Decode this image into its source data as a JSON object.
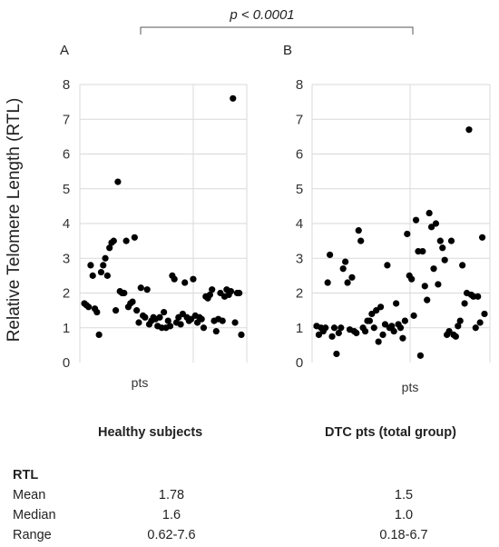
{
  "comparison": {
    "label": "p < 0.0001"
  },
  "ylabel": "Relative Telomere Length (RTL)",
  "chart_data": [
    {
      "type": "scatter",
      "panel": "A",
      "xlabel": "pts",
      "ylim": [
        0,
        8
      ],
      "yticks": [
        0,
        1,
        2,
        3,
        4,
        5,
        6,
        7,
        8
      ],
      "points": [
        [
          1,
          1.7
        ],
        [
          2,
          1.65
        ],
        [
          3,
          1.6
        ],
        [
          4,
          2.8
        ],
        [
          5,
          2.5
        ],
        [
          6,
          1.55
        ],
        [
          7,
          1.45
        ],
        [
          8,
          0.8
        ],
        [
          9,
          2.6
        ],
        [
          10,
          2.8
        ],
        [
          11,
          3.0
        ],
        [
          12,
          2.5
        ],
        [
          13,
          3.3
        ],
        [
          14,
          3.45
        ],
        [
          15,
          3.5
        ],
        [
          16,
          1.5
        ],
        [
          17,
          5.2
        ],
        [
          18,
          2.05
        ],
        [
          19,
          2.0
        ],
        [
          20,
          2.0
        ],
        [
          21,
          3.5
        ],
        [
          22,
          1.6
        ],
        [
          23,
          1.7
        ],
        [
          24,
          1.75
        ],
        [
          25,
          3.6
        ],
        [
          26,
          1.5
        ],
        [
          27,
          1.15
        ],
        [
          28,
          2.15
        ],
        [
          29,
          1.35
        ],
        [
          30,
          1.3
        ],
        [
          31,
          2.1
        ],
        [
          32,
          1.1
        ],
        [
          33,
          1.2
        ],
        [
          34,
          1.3
        ],
        [
          35,
          1.25
        ],
        [
          36,
          1.05
        ],
        [
          37,
          1.3
        ],
        [
          38,
          1.0
        ],
        [
          39,
          1.45
        ],
        [
          40,
          1.0
        ],
        [
          41,
          1.2
        ],
        [
          42,
          1.05
        ],
        [
          43,
          2.5
        ],
        [
          44,
          2.4
        ],
        [
          45,
          1.15
        ],
        [
          46,
          1.3
        ],
        [
          47,
          1.1
        ],
        [
          48,
          1.4
        ],
        [
          49,
          2.3
        ],
        [
          50,
          1.3
        ],
        [
          51,
          1.2
        ],
        [
          52,
          1.25
        ],
        [
          53,
          2.4
        ],
        [
          54,
          1.35
        ],
        [
          55,
          1.15
        ],
        [
          56,
          1.3
        ],
        [
          57,
          1.25
        ],
        [
          58,
          1.0
        ],
        [
          59,
          1.9
        ],
        [
          60,
          1.85
        ],
        [
          61,
          1.95
        ],
        [
          62,
          2.1
        ],
        [
          63,
          1.2
        ],
        [
          64,
          0.9
        ],
        [
          65,
          1.25
        ],
        [
          66,
          2.0
        ],
        [
          67,
          1.2
        ],
        [
          68,
          1.9
        ],
        [
          69,
          2.1
        ],
        [
          70,
          1.95
        ],
        [
          71,
          2.05
        ],
        [
          72,
          7.6
        ],
        [
          73,
          1.15
        ],
        [
          74,
          2.0
        ],
        [
          75,
          2.0
        ],
        [
          76,
          0.8
        ]
      ]
    },
    {
      "type": "scatter",
      "panel": "B",
      "xlabel": "pts",
      "ylim": [
        0,
        8
      ],
      "yticks": [
        0,
        1,
        2,
        3,
        4,
        5,
        6,
        7,
        8
      ],
      "points": [
        [
          1,
          1.05
        ],
        [
          2,
          0.8
        ],
        [
          3,
          1.0
        ],
        [
          4,
          0.9
        ],
        [
          5,
          1.0
        ],
        [
          6,
          2.3
        ],
        [
          7,
          3.1
        ],
        [
          8,
          0.75
        ],
        [
          9,
          1.0
        ],
        [
          10,
          0.25
        ],
        [
          11,
          0.85
        ],
        [
          12,
          1.0
        ],
        [
          13,
          2.7
        ],
        [
          14,
          2.9
        ],
        [
          15,
          2.3
        ],
        [
          16,
          0.95
        ],
        [
          17,
          2.45
        ],
        [
          18,
          0.9
        ],
        [
          19,
          0.85
        ],
        [
          20,
          3.8
        ],
        [
          21,
          3.5
        ],
        [
          22,
          1.0
        ],
        [
          23,
          0.9
        ],
        [
          24,
          1.2
        ],
        [
          25,
          1.2
        ],
        [
          26,
          1.4
        ],
        [
          27,
          1.0
        ],
        [
          28,
          1.5
        ],
        [
          29,
          0.6
        ],
        [
          30,
          1.6
        ],
        [
          31,
          0.8
        ],
        [
          32,
          1.1
        ],
        [
          33,
          2.8
        ],
        [
          34,
          1.0
        ],
        [
          35,
          1.05
        ],
        [
          36,
          0.9
        ],
        [
          37,
          1.7
        ],
        [
          38,
          1.1
        ],
        [
          39,
          1.0
        ],
        [
          40,
          0.7
        ],
        [
          41,
          1.2
        ],
        [
          42,
          3.7
        ],
        [
          43,
          2.5
        ],
        [
          44,
          2.4
        ],
        [
          45,
          1.35
        ],
        [
          46,
          4.1
        ],
        [
          47,
          3.2
        ],
        [
          48,
          0.2
        ],
        [
          49,
          3.2
        ],
        [
          50,
          2.2
        ],
        [
          51,
          1.8
        ],
        [
          52,
          4.3
        ],
        [
          53,
          3.9
        ],
        [
          54,
          2.7
        ],
        [
          55,
          4.0
        ],
        [
          56,
          2.25
        ],
        [
          57,
          3.5
        ],
        [
          58,
          3.3
        ],
        [
          59,
          2.95
        ],
        [
          60,
          0.8
        ],
        [
          61,
          0.9
        ],
        [
          62,
          3.5
        ],
        [
          63,
          0.8
        ],
        [
          64,
          0.75
        ],
        [
          65,
          1.05
        ],
        [
          66,
          1.2
        ],
        [
          67,
          2.8
        ],
        [
          68,
          1.7
        ],
        [
          69,
          2.0
        ],
        [
          70,
          6.7
        ],
        [
          71,
          1.95
        ],
        [
          72,
          1.9
        ],
        [
          73,
          1.0
        ],
        [
          74,
          1.9
        ],
        [
          75,
          1.15
        ],
        [
          76,
          3.6
        ],
        [
          77,
          1.4
        ]
      ]
    }
  ],
  "groups": [
    {
      "title": "Healthy subjects",
      "mean": "1.78",
      "median": "1.6",
      "range": "0.62-7.6"
    },
    {
      "title": "DTC pts (total group)",
      "mean": "1.5",
      "median": "1.0",
      "range": "0.18-6.7"
    }
  ],
  "stats": {
    "heading": "RTL",
    "row_labels": [
      "Mean",
      "Median",
      "Range"
    ]
  }
}
